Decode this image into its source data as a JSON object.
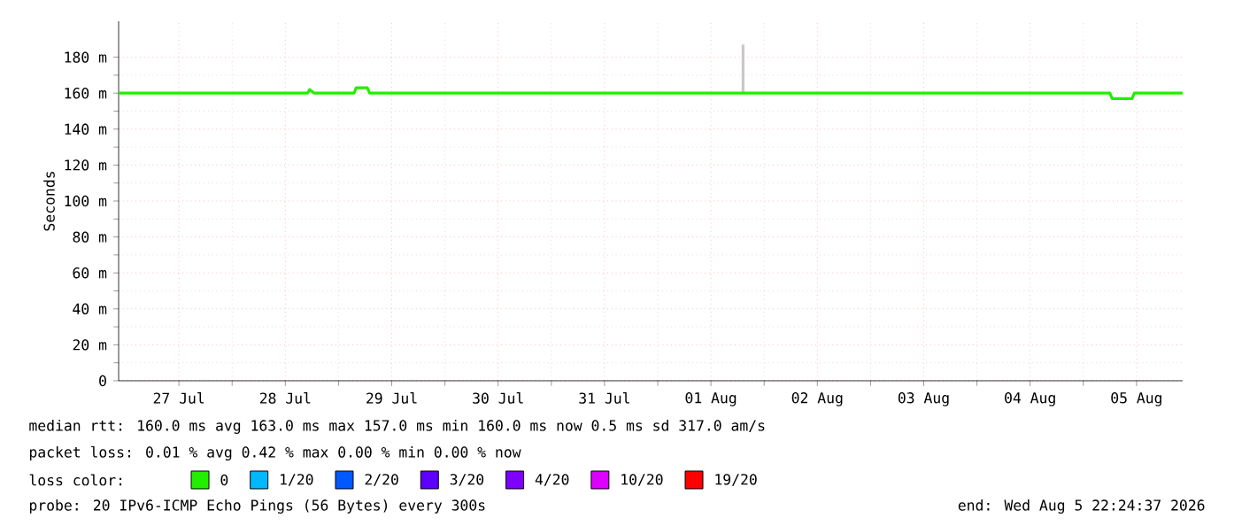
{
  "chart_data": {
    "type": "line",
    "ylabel": "Seconds",
    "legend_title": "loss color:",
    "legend": "bottom",
    "grid": true,
    "xlim": [
      "2026-07-26T22:24",
      "2026-08-05T22:24"
    ],
    "xticks": [
      {
        "value": "2026-07-27T12:00",
        "label": "27 Jul"
      },
      {
        "value": "2026-07-28T12:00",
        "label": "28 Jul"
      },
      {
        "value": "2026-07-29T12:00",
        "label": "29 Jul"
      },
      {
        "value": "2026-07-30T12:00",
        "label": "30 Jul"
      },
      {
        "value": "2026-07-31T12:00",
        "label": "31 Jul"
      },
      {
        "value": "2026-08-01T12:00",
        "label": "01 Aug"
      },
      {
        "value": "2026-08-02T12:00",
        "label": "02 Aug"
      },
      {
        "value": "2026-08-03T12:00",
        "label": "03 Aug"
      },
      {
        "value": "2026-08-04T12:00",
        "label": "04 Aug"
      },
      {
        "value": "2026-08-05T12:00",
        "label": "05 Aug"
      }
    ],
    "ylim": [
      0,
      200
    ],
    "yticks": [
      0,
      {
        "value": 20,
        "label": "20 m"
      },
      {
        "value": 40,
        "label": "40 m"
      },
      {
        "value": 60,
        "label": "60 m"
      },
      {
        "value": 80,
        "label": "80 m"
      },
      {
        "value": 100,
        "label": "100 m"
      },
      {
        "value": 120,
        "label": "120 m"
      },
      {
        "value": 140,
        "label": "140 m"
      },
      {
        "value": 160,
        "label": "160 m"
      },
      {
        "value": 180,
        "label": "180 m"
      }
    ],
    "series": [
      {
        "color": "#c8c8c8",
        "x": [
          "2026-08-01T19:15",
          "2026-08-01T19:15"
        ],
        "values": [
          160,
          187
        ]
      },
      {
        "name": "0",
        "color": "#22ee00",
        "x": [
          "2026-07-26T22:24",
          "2026-07-28T17:00",
          "2026-07-28T17:30",
          "2026-07-28T18:30",
          "2026-07-29T03:30",
          "2026-07-29T04:00",
          "2026-07-29T06:30",
          "2026-07-29T07:00",
          "2026-08-05T06:00",
          "2026-08-05T06:30",
          "2026-08-05T11:00",
          "2026-08-05T11:30",
          "2026-08-05T22:24"
        ],
        "values": [
          160,
          160,
          162,
          160,
          160,
          163,
          163,
          160,
          160,
          157,
          157,
          160,
          160
        ]
      },
      {
        "name": "1/20",
        "color": "#00b8ff"
      },
      {
        "name": "2/20",
        "color": "#0059ff"
      },
      {
        "name": "3/20",
        "color": "#5e00ff"
      },
      {
        "name": "4/20",
        "color": "#7e00ff"
      },
      {
        "name": "10/20",
        "color": "#dd00ff"
      },
      {
        "name": "19/20",
        "color": "#ff0000"
      }
    ],
    "annotations": [
      "median rtt:  160.0 ms avg  163.0 ms max  157.0 ms min  160.0 ms now  0.5 ms sd  317.0   am/s",
      "packet loss: 0.01 % avg  0.42 % max  0.00 % min  0.00 % now",
      "probe:       20 IPv6-ICMP Echo Pings (56 Bytes) every 300s",
      "end: Wed Aug  5 22:24:37 2026"
    ]
  }
}
